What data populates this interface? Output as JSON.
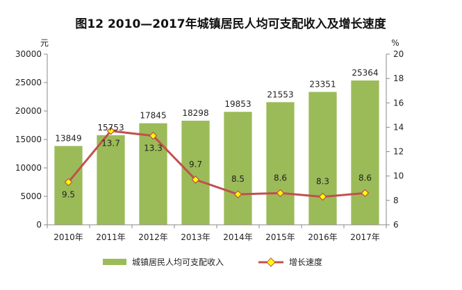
{
  "chart_data": {
    "type": "bar",
    "title": "图12  2010—2017年城镇居民人均可支配收入及增长速度",
    "categories": [
      "2010年",
      "2011年",
      "2012年",
      "2013年",
      "2014年",
      "2015年",
      "2016年",
      "2017年"
    ],
    "y_left": {
      "unit": "元",
      "min": 0,
      "max": 30000,
      "ticks": [
        0,
        5000,
        10000,
        15000,
        20000,
        25000,
        30000
      ]
    },
    "y_right": {
      "unit": "%",
      "min": 6,
      "max": 20,
      "ticks": [
        6,
        8,
        10,
        12,
        14,
        16,
        18,
        20
      ]
    },
    "series": [
      {
        "name": "城镇居民人均可支配收入",
        "type": "bar",
        "axis": "left",
        "color": "#9bbb59",
        "values": [
          13849,
          15753,
          17845,
          18298,
          19853,
          21553,
          23351,
          25364
        ]
      },
      {
        "name": "增长速度",
        "type": "line",
        "axis": "right",
        "color": "#c0504d",
        "marker_color": "#ffff00",
        "values": [
          9.5,
          13.7,
          13.3,
          9.7,
          8.5,
          8.6,
          8.3,
          8.6
        ]
      }
    ],
    "legend": "bottom",
    "grid": false
  }
}
